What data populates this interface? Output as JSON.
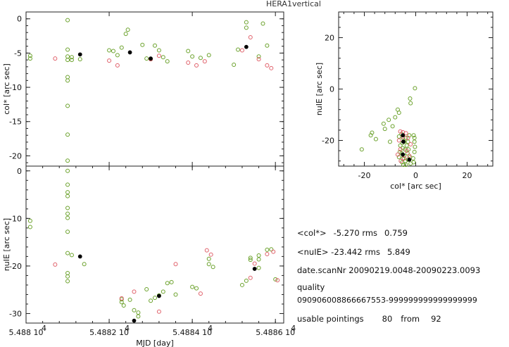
{
  "page": {
    "title": "HERA1vertical"
  },
  "stats": {
    "col_label": "<col*>",
    "col_mean": "-5.270",
    "rms_label": "rms",
    "col_rms": "0.759",
    "nue_label": "<nuIE>",
    "nue_mean": "-23.442",
    "nue_rms": "5.849",
    "date_label": "date.scanNr",
    "date_value": "20090219.0048-20090223.0093",
    "quality_label": "quality",
    "quality_value": "090906008866667553-999999999999999999",
    "usable_label": "usable pointings",
    "usable_count": "80",
    "from_label": "from",
    "usable_total": "92"
  },
  "colors": {
    "green": "#6aa12a",
    "red": "#e0606a",
    "black": "#000000",
    "frame": "#222222"
  },
  "chart_data": [
    {
      "type": "scatter",
      "xlabel": "",
      "ylabel": "col* [arc sec]",
      "xlim": [
        54880,
        54886.2
      ],
      "ylim": [
        -21.5,
        1
      ],
      "yticks": [
        0,
        -5,
        -10,
        -15,
        -20
      ],
      "series": [
        {
          "color": "green",
          "points": [
            [
              54880.1,
              -5.4
            ],
            [
              54880.1,
              -5.8
            ],
            [
              54881.0,
              -0.2
            ],
            [
              54881.0,
              -4.5
            ],
            [
              54881.0,
              -5.5
            ],
            [
              54881.0,
              -6.0
            ],
            [
              54881.0,
              -8.5
            ],
            [
              54881.0,
              -9.0
            ],
            [
              54881.0,
              -12.7
            ],
            [
              54881.0,
              -16.9
            ],
            [
              54881.0,
              -20.7
            ],
            [
              54881.1,
              -5.6
            ],
            [
              54881.1,
              -6.0
            ],
            [
              54881.3,
              -5.9
            ],
            [
              54882.0,
              -4.6
            ],
            [
              54882.1,
              -4.7
            ],
            [
              54882.2,
              -5.3
            ],
            [
              54882.3,
              -4.2
            ],
            [
              54882.4,
              -2.2
            ],
            [
              54882.45,
              -1.6
            ],
            [
              54882.8,
              -3.8
            ],
            [
              54882.9,
              -5.8
            ],
            [
              54883.0,
              -5.9
            ],
            [
              54883.1,
              -3.9
            ],
            [
              54883.2,
              -4.6
            ],
            [
              54883.3,
              -5.6
            ],
            [
              54883.4,
              -6.2
            ],
            [
              54883.9,
              -4.7
            ],
            [
              54884.0,
              -5.5
            ],
            [
              54884.2,
              -5.7
            ],
            [
              54884.4,
              -5.3
            ],
            [
              54885.0,
              -6.7
            ],
            [
              54885.1,
              -4.5
            ],
            [
              54885.3,
              -0.5
            ],
            [
              54885.3,
              -1.3
            ],
            [
              54885.6,
              -5.5
            ],
            [
              54885.7,
              -0.7
            ],
            [
              54885.8,
              -3.9
            ]
          ]
        },
        {
          "color": "red",
          "points": [
            [
              54880.7,
              -5.8
            ],
            [
              54882.0,
              -6.1
            ],
            [
              54882.2,
              -6.8
            ],
            [
              54883.0,
              -5.9
            ],
            [
              54883.2,
              -5.4
            ],
            [
              54883.9,
              -6.4
            ],
            [
              54884.1,
              -6.8
            ],
            [
              54884.3,
              -6.2
            ],
            [
              54885.2,
              -4.6
            ],
            [
              54885.4,
              -2.7
            ],
            [
              54885.6,
              -5.9
            ],
            [
              54885.8,
              -6.8
            ],
            [
              54885.9,
              -7.2
            ]
          ]
        },
        {
          "color": "black",
          "points": [
            [
              54881.3,
              -5.2
            ],
            [
              54882.5,
              -4.9
            ],
            [
              54883.0,
              -5.8
            ],
            [
              54885.3,
              -4.1
            ]
          ]
        }
      ]
    },
    {
      "type": "scatter",
      "xlabel": "MJD [day]",
      "ylabel": "nuIE [arc sec]",
      "xlim": [
        54880,
        54886.2
      ],
      "ylim": [
        -32,
        1
      ],
      "xticks": [
        54880,
        54882,
        54884,
        54886
      ],
      "xticklabels": [
        "5.488 10",
        "5.4882 10",
        "5.4884 10",
        "5.4886 10"
      ],
      "xtick_exponent": "4",
      "yticks": [
        0,
        -10,
        -20,
        -30
      ],
      "series": [
        {
          "color": "green",
          "points": [
            [
              54880.1,
              -10.5
            ],
            [
              54880.1,
              -11.8
            ],
            [
              54881.0,
              0.0
            ],
            [
              54881.0,
              -2.9
            ],
            [
              54881.0,
              -4.5
            ],
            [
              54881.0,
              -5.3
            ],
            [
              54881.0,
              -7.8
            ],
            [
              54881.0,
              -9.0
            ],
            [
              54881.0,
              -9.9
            ],
            [
              54881.0,
              -12.8
            ],
            [
              54881.0,
              -17.3
            ],
            [
              54881.0,
              -21.5
            ],
            [
              54881.0,
              -22.2
            ],
            [
              54881.0,
              -23.2
            ],
            [
              54881.1,
              -17.7
            ],
            [
              54881.4,
              -19.6
            ],
            [
              54882.3,
              -27.0
            ],
            [
              54882.3,
              -27.6
            ],
            [
              54882.35,
              -28.3
            ],
            [
              54882.5,
              -27.1
            ],
            [
              54882.6,
              -29.3
            ],
            [
              54882.7,
              -29.8
            ],
            [
              54882.7,
              -30.6
            ],
            [
              54882.9,
              -24.9
            ],
            [
              54883.0,
              -27.3
            ],
            [
              54883.1,
              -26.7
            ],
            [
              54883.2,
              -26.2
            ],
            [
              54883.3,
              -25.4
            ],
            [
              54883.4,
              -23.6
            ],
            [
              54883.5,
              -23.4
            ],
            [
              54883.6,
              -26.0
            ],
            [
              54884.0,
              -24.4
            ],
            [
              54884.1,
              -24.7
            ],
            [
              54884.4,
              -18.5
            ],
            [
              54884.4,
              -19.6
            ],
            [
              54884.5,
              -20.2
            ],
            [
              54885.2,
              -24.0
            ],
            [
              54885.3,
              -23.1
            ],
            [
              54885.4,
              -18.3
            ],
            [
              54885.4,
              -18.7
            ],
            [
              54885.6,
              -20.4
            ],
            [
              54885.6,
              -17.8
            ],
            [
              54885.6,
              -18.6
            ],
            [
              54885.8,
              -16.6
            ],
            [
              54885.9,
              -16.5
            ],
            [
              54886.0,
              -22.8
            ]
          ]
        },
        {
          "color": "red",
          "points": [
            [
              54880.7,
              -19.7
            ],
            [
              54882.3,
              -26.8
            ],
            [
              54882.6,
              -25.4
            ],
            [
              54883.2,
              -29.6
            ],
            [
              54883.6,
              -19.6
            ],
            [
              54884.2,
              -25.8
            ],
            [
              54884.35,
              -16.7
            ],
            [
              54884.45,
              -17.6
            ],
            [
              54885.4,
              -22.5
            ],
            [
              54885.5,
              -19.5
            ],
            [
              54885.8,
              -17.5
            ],
            [
              54885.95,
              -17.0
            ],
            [
              54886.05,
              -23.0
            ]
          ]
        },
        {
          "color": "black",
          "points": [
            [
              54881.3,
              -18.0
            ],
            [
              54882.6,
              -31.5
            ],
            [
              54883.2,
              -26.3
            ],
            [
              54885.5,
              -20.6
            ]
          ]
        }
      ]
    },
    {
      "type": "scatter",
      "xlabel": "col* [arc sec]",
      "ylabel": "nuIE [arc sec]",
      "xlim": [
        -30,
        30
      ],
      "ylim": [
        -30,
        30
      ],
      "xticks": [
        -20,
        0,
        20
      ],
      "yticks": [
        20,
        0,
        -20
      ],
      "series": [
        {
          "color": "green",
          "points": [
            [
              -0.3,
              0.3
            ],
            [
              -2.2,
              -3.7
            ],
            [
              -2.0,
              -5.5
            ],
            [
              -7.0,
              -8.0
            ],
            [
              -6.5,
              -9.2
            ],
            [
              -8.0,
              -11.0
            ],
            [
              -10.5,
              -12.0
            ],
            [
              -12.5,
              -13.5
            ],
            [
              -9.0,
              -14.5
            ],
            [
              -12.0,
              -15.5
            ],
            [
              -17.0,
              -17.0
            ],
            [
              -17.5,
              -18.0
            ],
            [
              -21.0,
              -23.5
            ],
            [
              -15.5,
              -19.5
            ],
            [
              -10.0,
              -20.5
            ],
            [
              -5.5,
              -17.5
            ],
            [
              -5.0,
              -19.0
            ],
            [
              -5.2,
              -21.0
            ],
            [
              -5.0,
              -23.0
            ],
            [
              -5.5,
              -25.0
            ],
            [
              -5.0,
              -27.0
            ],
            [
              -5.3,
              -28.5
            ],
            [
              -4.8,
              -29.5
            ],
            [
              -6.0,
              -22.0
            ],
            [
              -6.2,
              -24.5
            ],
            [
              -4.5,
              -20.5
            ],
            [
              -4.2,
              -23.5
            ],
            [
              -4.5,
              -26.0
            ],
            [
              -3.8,
              -19.0
            ],
            [
              -3.5,
              -22.0
            ],
            [
              -3.2,
              -25.0
            ],
            [
              -4.0,
              -28.0
            ],
            [
              -3.8,
              -29.5
            ],
            [
              -3.0,
              -20.5
            ],
            [
              -3.0,
              -27.5
            ],
            [
              -2.5,
              -18.0
            ],
            [
              -2.8,
              -23.5
            ],
            [
              -2.2,
              -26.5
            ],
            [
              -2.0,
              -29.0
            ],
            [
              -6.5,
              -18.5
            ],
            [
              -6.5,
              -26.5
            ],
            [
              -0.8,
              -18.0
            ],
            [
              -0.5,
              -19.0
            ],
            [
              -0.5,
              -20.5
            ],
            [
              -0.3,
              -22.5
            ],
            [
              -0.5,
              -24.5
            ],
            [
              -1.0,
              -27.0
            ],
            [
              -0.8,
              -28.5
            ]
          ]
        },
        {
          "color": "red",
          "points": [
            [
              -6.0,
              -16.5
            ],
            [
              -5.0,
              -16.8
            ],
            [
              -3.8,
              -17.2
            ],
            [
              -6.5,
              -20.0
            ],
            [
              -3.5,
              -24.0
            ],
            [
              -6.0,
              -23.5
            ],
            [
              -7.0,
              -25.5
            ],
            [
              -5.0,
              -18.5
            ],
            [
              -3.0,
              -19.0
            ],
            [
              -2.0,
              -21.5
            ],
            [
              -5.8,
              -28.0
            ],
            [
              -4.5,
              -27.0
            ],
            [
              -2.5,
              -26.0
            ]
          ]
        },
        {
          "color": "black",
          "points": [
            [
              -5.0,
              -18.0
            ],
            [
              -4.8,
              -20.5
            ],
            [
              -5.0,
              -25.5
            ],
            [
              -2.5,
              -27.5
            ]
          ]
        }
      ]
    }
  ]
}
